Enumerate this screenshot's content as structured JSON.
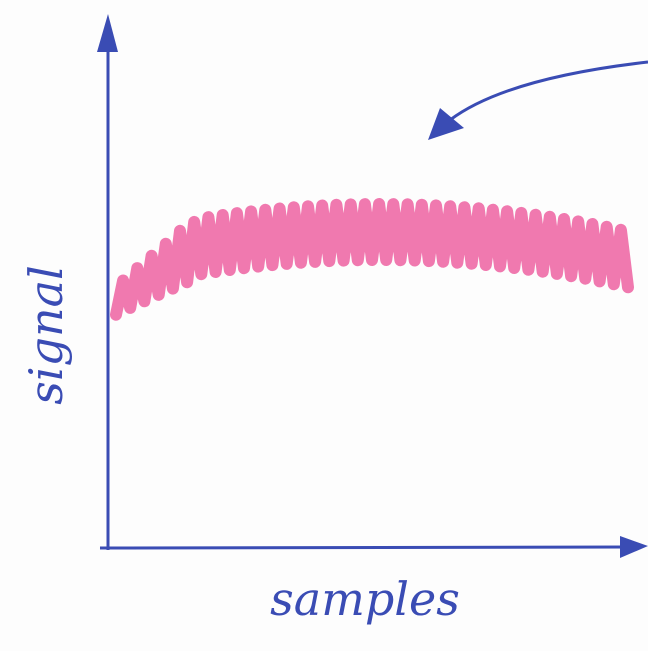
{
  "axes": {
    "y_label": "signal",
    "x_label": "samples"
  }
}
